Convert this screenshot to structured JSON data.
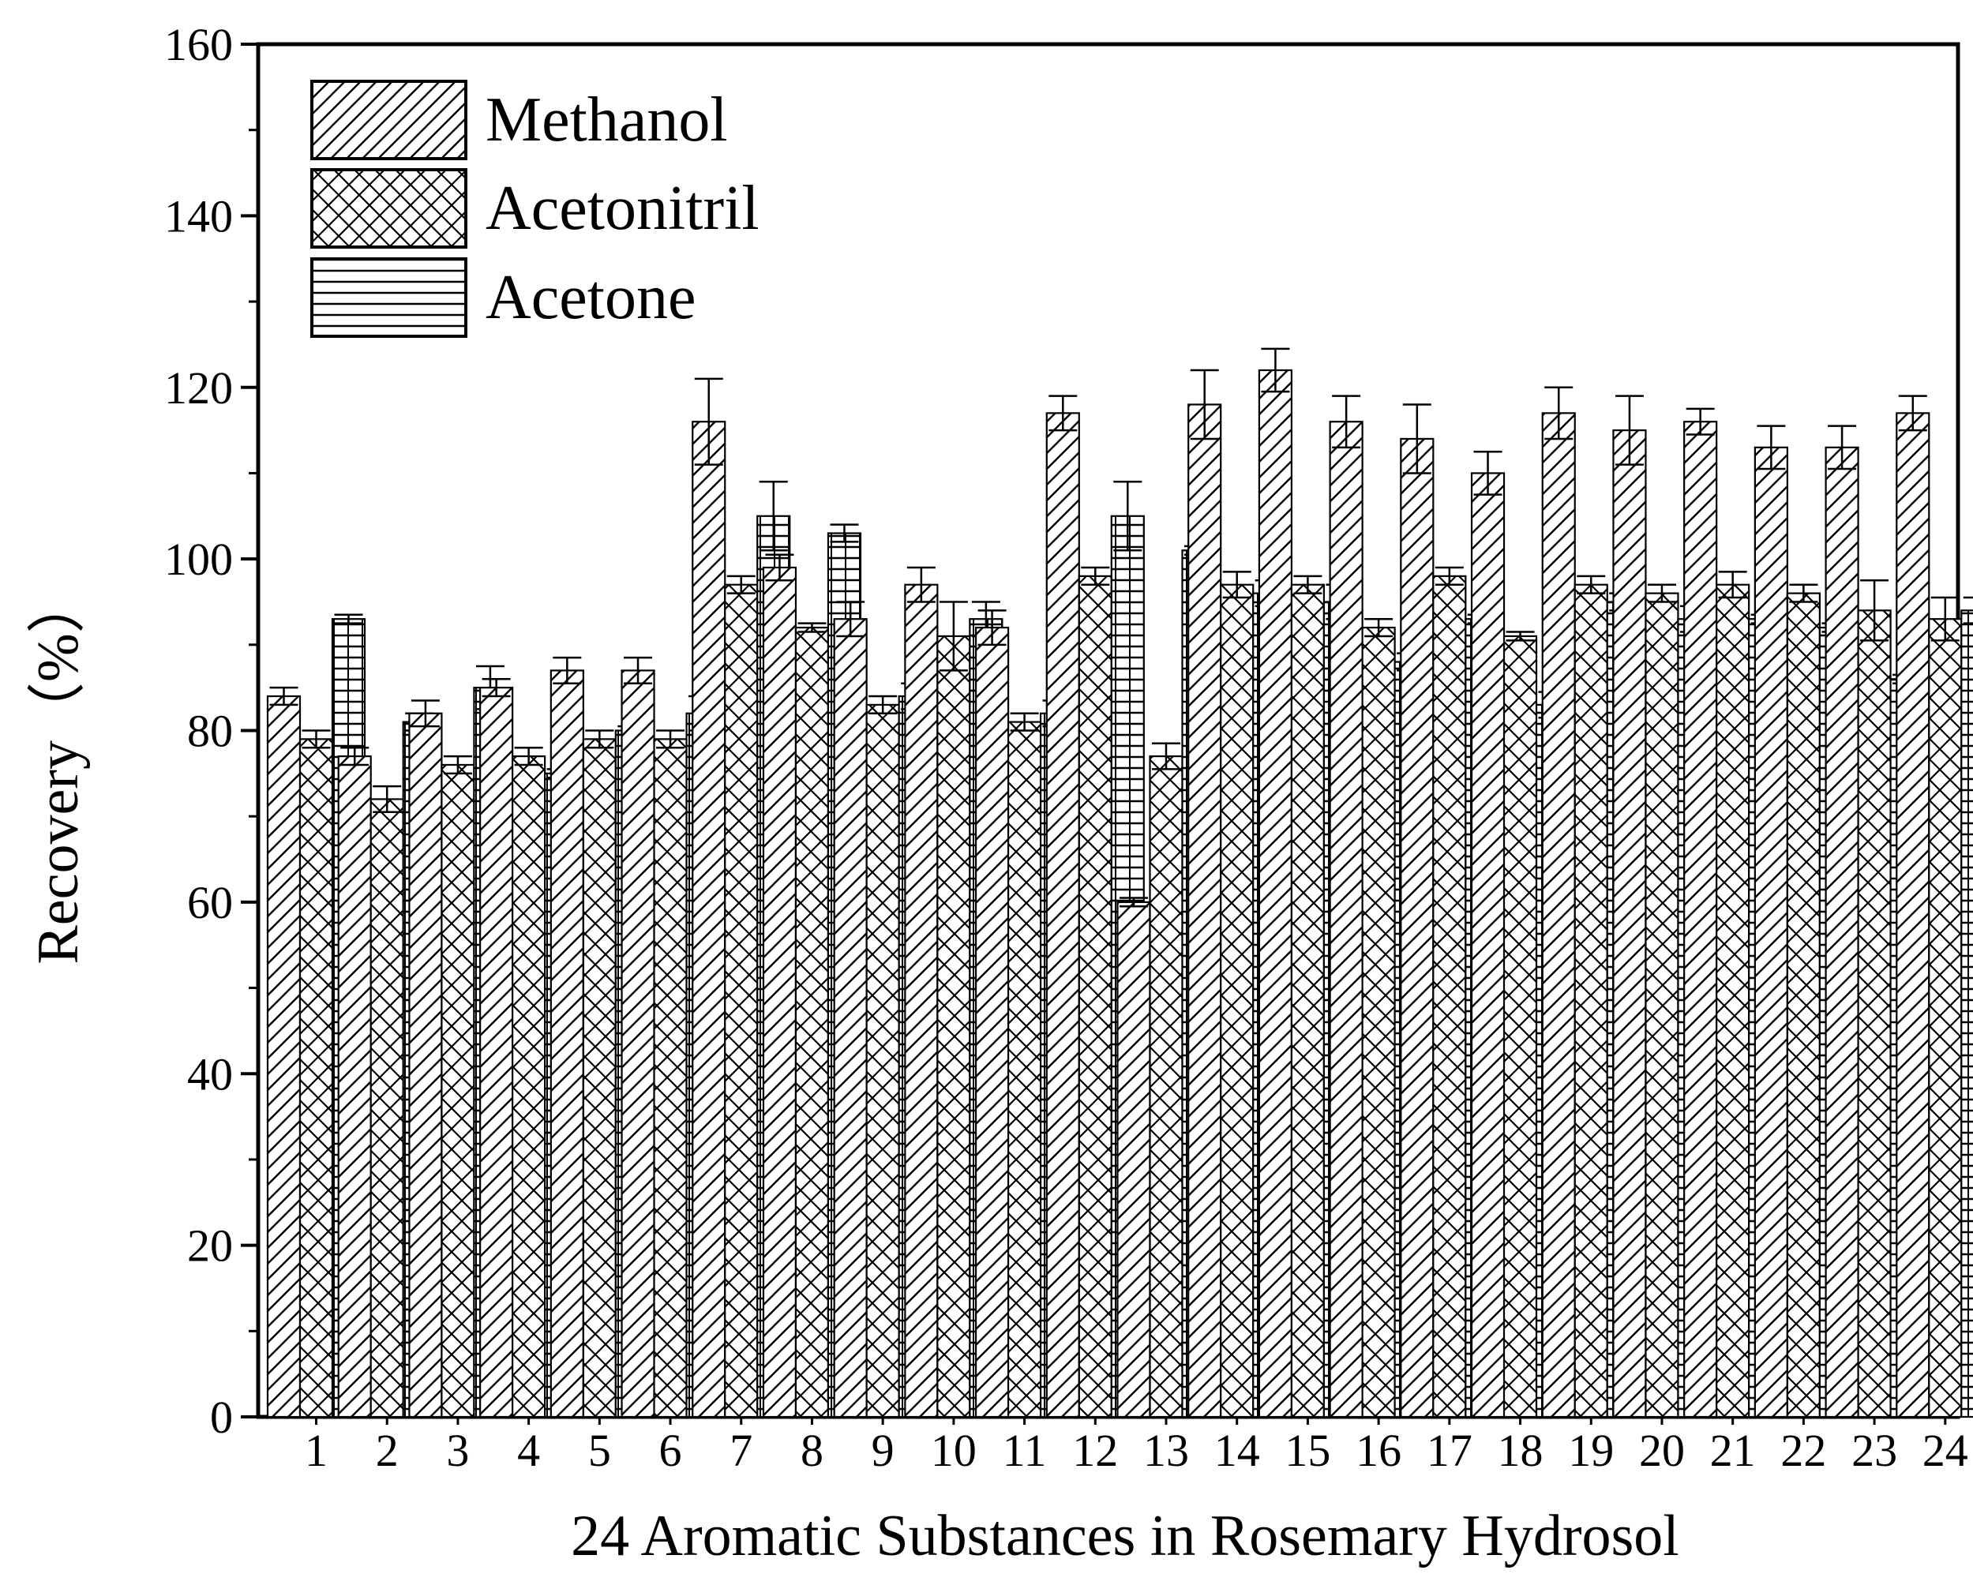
{
  "chart_data": {
    "type": "bar",
    "title": "",
    "xlabel": "24 Aromatic Substances in Rosemary Hydrosol",
    "ylabel": "Recovery（%）",
    "ylim": [
      0,
      160
    ],
    "yticks": [
      0,
      20,
      40,
      60,
      80,
      100,
      120,
      140,
      160
    ],
    "grid": false,
    "legend_position": "top-left",
    "categories": [
      "1",
      "2",
      "3",
      "4",
      "5",
      "6",
      "7",
      "8",
      "9",
      "10",
      "11",
      "12",
      "13",
      "14",
      "15",
      "16",
      "17",
      "18",
      "19",
      "20",
      "21",
      "22",
      "23",
      "24"
    ],
    "series": [
      {
        "name": "Methanol",
        "pattern": "diagonal",
        "values": [
          84,
          77,
          82,
          85,
          87,
          87,
          116,
          99,
          93,
          97,
          92,
          117,
          60,
          118,
          122,
          116,
          114,
          110,
          117,
          115,
          116,
          113,
          113,
          117
        ],
        "errors": [
          1,
          1,
          1.5,
          1,
          1.5,
          1.5,
          5,
          1.5,
          2,
          2,
          2,
          2,
          0.5,
          4,
          2.5,
          3,
          4,
          2.5,
          3,
          4,
          1.5,
          2.5,
          2.5,
          2
        ]
      },
      {
        "name": "Acetonitril",
        "pattern": "crosshatch",
        "values": [
          79,
          72,
          76,
          77,
          79,
          79,
          97,
          92,
          83,
          91,
          81,
          98,
          77,
          97,
          97,
          92,
          98,
          91,
          97,
          96,
          97,
          96,
          94,
          93
        ],
        "errors": [
          1,
          1.5,
          1,
          1,
          1,
          1,
          1,
          0.5,
          1,
          4,
          1,
          1,
          1.5,
          1.5,
          1,
          1,
          1,
          0.5,
          1,
          1,
          1.5,
          1,
          3.5,
          2.5
        ]
      },
      {
        "name": "Acetone",
        "pattern": "horizontal",
        "values": [
          93,
          81,
          85,
          75,
          80,
          82,
          105,
          103,
          84,
          93,
          82,
          105,
          101,
          96,
          95,
          88,
          93,
          83,
          95,
          93,
          93,
          92,
          86,
          94
        ],
        "errors": [
          0.5,
          1,
          2.5,
          0.5,
          0.5,
          2,
          4,
          1,
          1.5,
          2,
          1.5,
          4,
          0.5,
          1.5,
          2,
          1,
          0.5,
          1.5,
          1,
          1.5,
          0.5,
          0.5,
          0.5,
          1.5
        ]
      }
    ],
    "colors": {
      "stroke": "#000000",
      "fill": "#ffffff"
    }
  }
}
